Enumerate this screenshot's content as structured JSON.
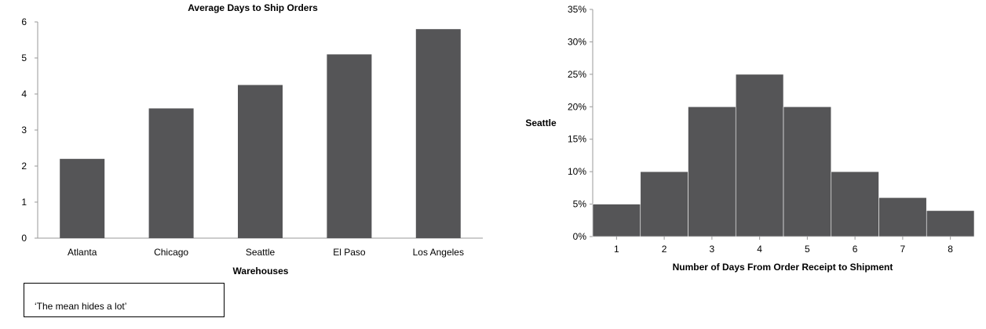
{
  "chart_data": [
    {
      "type": "bar",
      "title": "Average Days  to Ship Orders",
      "xlabel": "Warehouses",
      "ylabel": "",
      "categories": [
        "Atlanta",
        "Chicago",
        "Seattle",
        "El Paso",
        "Los Angeles"
      ],
      "values": [
        2.2,
        3.6,
        4.25,
        5.1,
        5.8
      ],
      "ylim": [
        0,
        6
      ],
      "yticks": [
        0,
        1,
        2,
        3,
        4,
        5,
        6
      ],
      "bar_color": "#555557",
      "grid": false
    },
    {
      "type": "bar",
      "title": "",
      "xlabel": "Number of Days From Order Receipt to Shipment",
      "ylabel": "Seattle",
      "categories": [
        "1",
        "2",
        "3",
        "4",
        "5",
        "6",
        "7",
        "8"
      ],
      "values": [
        5,
        10,
        20,
        25,
        20,
        10,
        6,
        4
      ],
      "ylim": [
        0,
        35
      ],
      "yticks": [
        "0%",
        "5%",
        "10%",
        "15%",
        "20%",
        "25%",
        "30%",
        "35%"
      ],
      "bar_color": "#555557",
      "grid": false
    }
  ],
  "note": {
    "text": "‘The mean hides a lot’"
  }
}
